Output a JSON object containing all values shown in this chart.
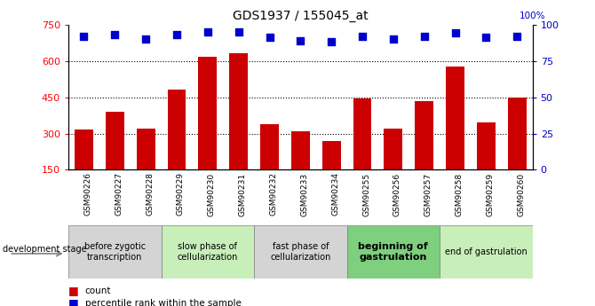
{
  "title": "GDS1937 / 155045_at",
  "samples": [
    "GSM90226",
    "GSM90227",
    "GSM90228",
    "GSM90229",
    "GSM90230",
    "GSM90231",
    "GSM90232",
    "GSM90233",
    "GSM90234",
    "GSM90255",
    "GSM90256",
    "GSM90257",
    "GSM90258",
    "GSM90259",
    "GSM90260"
  ],
  "counts": [
    315,
    390,
    320,
    480,
    615,
    630,
    340,
    310,
    270,
    445,
    320,
    435,
    575,
    345,
    450
  ],
  "percentiles": [
    92,
    93,
    90,
    93,
    95,
    95,
    91,
    89,
    88,
    92,
    90,
    92,
    94,
    91,
    92
  ],
  "ylim_left": [
    150,
    750
  ],
  "ylim_right": [
    0,
    100
  ],
  "yticks_left": [
    150,
    300,
    450,
    600,
    750
  ],
  "yticks_right": [
    0,
    25,
    50,
    75,
    100
  ],
  "bar_color": "#cc0000",
  "dot_color": "#0000cc",
  "stage_groups": [
    {
      "label": "before zygotic\ntranscription",
      "start": 0,
      "end": 3,
      "color": "#d4d4d4",
      "bold": false
    },
    {
      "label": "slow phase of\ncellularization",
      "start": 3,
      "end": 6,
      "color": "#c8efba",
      "bold": false
    },
    {
      "label": "fast phase of\ncellularization",
      "start": 6,
      "end": 9,
      "color": "#d4d4d4",
      "bold": false
    },
    {
      "label": "beginning of\ngastrulation",
      "start": 9,
      "end": 12,
      "color": "#7ecf7e",
      "bold": true
    },
    {
      "label": "end of gastrulation",
      "start": 12,
      "end": 15,
      "color": "#c8efba",
      "bold": false
    }
  ],
  "legend_labels": [
    "count",
    "percentile rank within the sample"
  ],
  "dev_stage_label": "development stage",
  "background_color": "#ffffff"
}
